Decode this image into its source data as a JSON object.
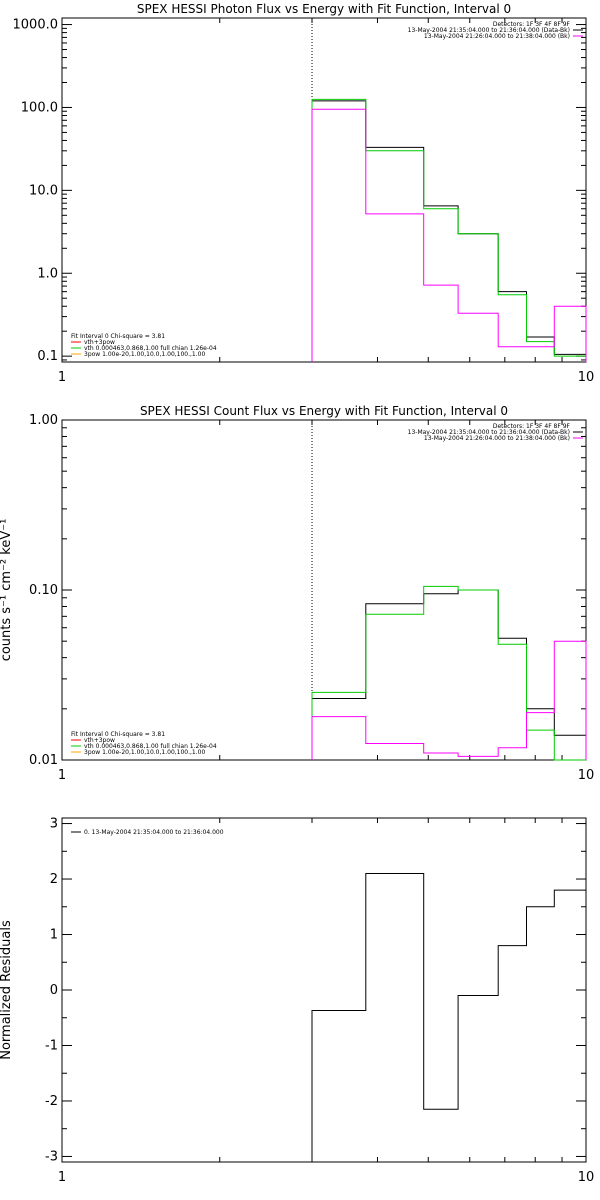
{
  "chart_data": [
    {
      "type": "line",
      "title": "SPEX HESSI Photon Flux vs Energy with Fit Function, Interval 0",
      "ylabel": "",
      "xscale": "log",
      "yscale": "log",
      "xlim": [
        1,
        10
      ],
      "ylim": [
        0.085,
        1200
      ],
      "xticks": [
        {
          "v": 1,
          "label": "1"
        },
        {
          "v": 10,
          "label": "10"
        }
      ],
      "yticks": [
        {
          "v": 0.1,
          "label": "0.1"
        },
        {
          "v": 1,
          "label": "1.0"
        },
        {
          "v": 10,
          "label": "10.0"
        },
        {
          "v": 100,
          "label": "100.0"
        },
        {
          "v": 1000,
          "label": "1000.0"
        }
      ],
      "vline_x": 3.0,
      "legend_right": [
        {
          "text": "Detectors: 1F 3F 4F 8F 9F",
          "color": null
        },
        {
          "text": "13-May-2004 21:35:04.000 to 21:36:04.000 (Data-Bk)",
          "color": "#000000"
        },
        {
          "text": "13-May-2004 21:26:04.000 to 21:38:04.000 (Bk)",
          "color": "#ff00ff"
        }
      ],
      "legend_left": [
        {
          "text": "Fit Interval  0    Chi-square = 3.81",
          "color": null
        },
        {
          "text": "vth+3pow",
          "color": "#ff0000"
        },
        {
          "text": "vth 0.000463,0.868,1.00  full chian 1.26e-04",
          "color": "#00cc00"
        },
        {
          "text": "3pow 1.00e-20,1.00,10.0,1.00,100.,1.00",
          "color": "#ffa500"
        }
      ],
      "edges": [
        3.0,
        3.8,
        4.9,
        5.7,
        6.8,
        7.7,
        8.7,
        10
      ],
      "series": [
        {
          "key": "data",
          "color": "#000000",
          "values": [
            120,
            33,
            6.5,
            3.0,
            0.6,
            0.17,
            0.105
          ]
        },
        {
          "key": "fit",
          "color": "#00cc00",
          "values": [
            125,
            30,
            6.0,
            3.0,
            0.55,
            0.15,
            0.1
          ]
        },
        {
          "key": "bk",
          "color": "#ff00ff",
          "values": [
            95,
            5.2,
            0.72,
            0.33,
            0.13,
            0.13,
            0.4
          ]
        }
      ]
    },
    {
      "type": "line",
      "title": "SPEX HESSI Count Flux vs Energy with Fit Function, Interval 0",
      "ylabel": "counts s⁻¹ cm⁻² keV⁻¹",
      "xscale": "log",
      "yscale": "log",
      "xlim": [
        1,
        10
      ],
      "ylim": [
        0.01,
        1.0
      ],
      "xticks": [
        {
          "v": 1,
          "label": "1"
        },
        {
          "v": 10,
          "label": "10"
        }
      ],
      "yticks": [
        {
          "v": 0.01,
          "label": "0.01"
        },
        {
          "v": 0.1,
          "label": "0.10"
        },
        {
          "v": 1.0,
          "label": "1.00"
        }
      ],
      "vline_x": 3.0,
      "legend_right": [
        {
          "text": "Detectors: 1F 3F 4F 8F 9F",
          "color": null
        },
        {
          "text": "13-May-2004 21:35:04.000 to 21:36:04.000 (Data-Bk)",
          "color": "#000000"
        },
        {
          "text": "13-May-2004 21:26:04.000 to 21:38:04.000 (Bk)",
          "color": "#ff00ff"
        }
      ],
      "legend_left": [
        {
          "text": "Fit Interval  0    Chi-square = 3.81",
          "color": null
        },
        {
          "text": "vth+3pow",
          "color": "#ff0000"
        },
        {
          "text": "vth 0.000463,0.868,1.00  full chian 1.26e-04",
          "color": "#00cc00"
        },
        {
          "text": "3pow 1.00e-20,1.00,10.0,1.00,100.,1.00",
          "color": "#ffa500"
        }
      ],
      "edges": [
        3.0,
        3.8,
        4.9,
        5.7,
        6.8,
        7.7,
        8.7,
        10
      ],
      "series": [
        {
          "key": "data",
          "color": "#000000",
          "values": [
            0.023,
            0.083,
            0.095,
            0.1,
            0.052,
            0.02,
            0.014
          ]
        },
        {
          "key": "fit",
          "color": "#00cc00",
          "values": [
            0.025,
            0.072,
            0.105,
            0.1,
            0.048,
            0.015,
            0.01
          ]
        },
        {
          "key": "bk",
          "color": "#ff00ff",
          "values": [
            0.018,
            0.0125,
            0.011,
            0.0105,
            0.0118,
            0.019,
            0.05
          ]
        }
      ]
    },
    {
      "type": "line",
      "title": "",
      "ylabel": "Normalized Residuals",
      "xscale": "log",
      "yscale": "linear",
      "xlim": [
        1,
        10
      ],
      "ylim": [
        -3.1,
        3.1
      ],
      "xticks": [
        {
          "v": 1,
          "label": "1"
        },
        {
          "v": 10,
          "label": "10"
        }
      ],
      "yticks": [
        {
          "v": -3,
          "label": "-3"
        },
        {
          "v": -2,
          "label": "-2"
        },
        {
          "v": -1,
          "label": "-1"
        },
        {
          "v": 0,
          "label": "0"
        },
        {
          "v": 1,
          "label": "1"
        },
        {
          "v": 2,
          "label": "2"
        },
        {
          "v": 3,
          "label": "3"
        }
      ],
      "legend_left": [
        {
          "text": "0. 13-May-2004 21:35:04.000 to 21:36:04.000",
          "color": "#000000"
        }
      ],
      "edges": [
        3.0,
        3.8,
        4.9,
        5.7,
        6.8,
        7.7,
        8.7,
        10
      ],
      "series": [
        {
          "key": "residuals",
          "color": "#000000",
          "values": [
            -0.37,
            2.1,
            -2.15,
            -0.1,
            0.8,
            1.5,
            1.8
          ]
        }
      ]
    }
  ]
}
